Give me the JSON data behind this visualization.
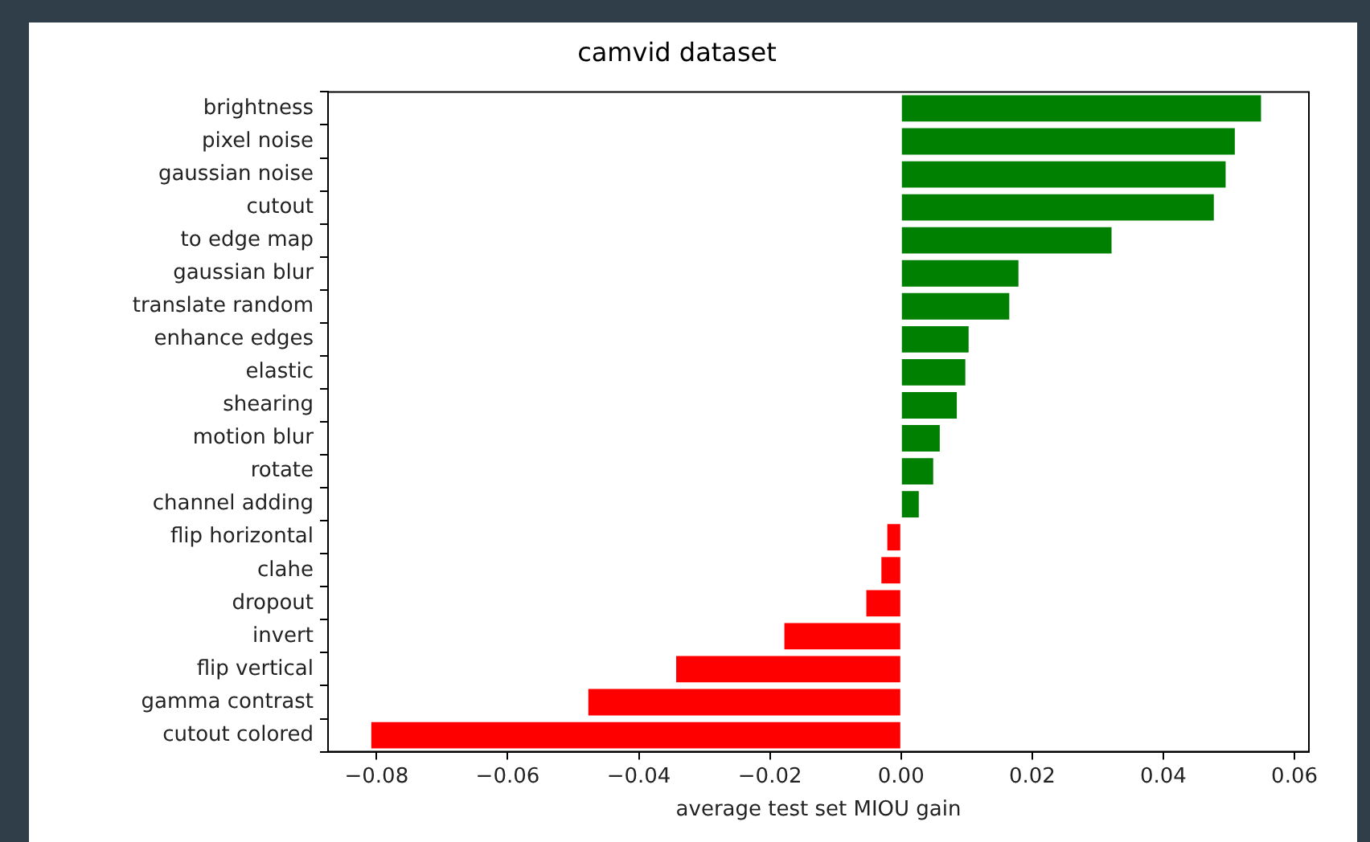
{
  "chart_data": {
    "type": "bar",
    "orientation": "horizontal",
    "title": "camvid dataset",
    "xlabel": "average test set MIOU gain",
    "categories": [
      "brightness",
      "pixel noise",
      "gaussian noise",
      "cutout",
      "to edge map",
      "gaussian blur",
      "translate random",
      "enhance edges",
      "elastic",
      "shearing",
      "motion blur",
      "rotate",
      "channel adding",
      "flip horizontal",
      "clahe",
      "dropout",
      "invert",
      "flip vertical",
      "gamma contrast",
      "cutout colored"
    ],
    "values": [
      0.0549,
      0.0509,
      0.0495,
      0.0477,
      0.0321,
      0.0179,
      0.0165,
      0.0103,
      0.0098,
      0.0085,
      0.0059,
      0.0049,
      0.0027,
      -0.0021,
      -0.003,
      -0.0053,
      -0.0178,
      -0.0343,
      -0.0477,
      -0.0808
    ],
    "colors": [
      "#008000",
      "#008000",
      "#008000",
      "#008000",
      "#008000",
      "#008000",
      "#008000",
      "#008000",
      "#008000",
      "#008000",
      "#008000",
      "#008000",
      "#008000",
      "#ff0000",
      "#ff0000",
      "#ff0000",
      "#ff0000",
      "#ff0000",
      "#ff0000",
      "#ff0000"
    ],
    "xlim": [
      -0.0874,
      0.0622
    ],
    "xticks": [
      {
        "value": -0.08,
        "label": "−0.08"
      },
      {
        "value": -0.06,
        "label": "−0.06"
      },
      {
        "value": -0.04,
        "label": "−0.04"
      },
      {
        "value": -0.02,
        "label": "−0.02"
      },
      {
        "value": 0,
        "label": "0.00"
      },
      {
        "value": 0.02,
        "label": "0.02"
      },
      {
        "value": 0.04,
        "label": "0.04"
      },
      {
        "value": 0.06,
        "label": "0.06"
      }
    ],
    "grid": false,
    "legend": false
  }
}
